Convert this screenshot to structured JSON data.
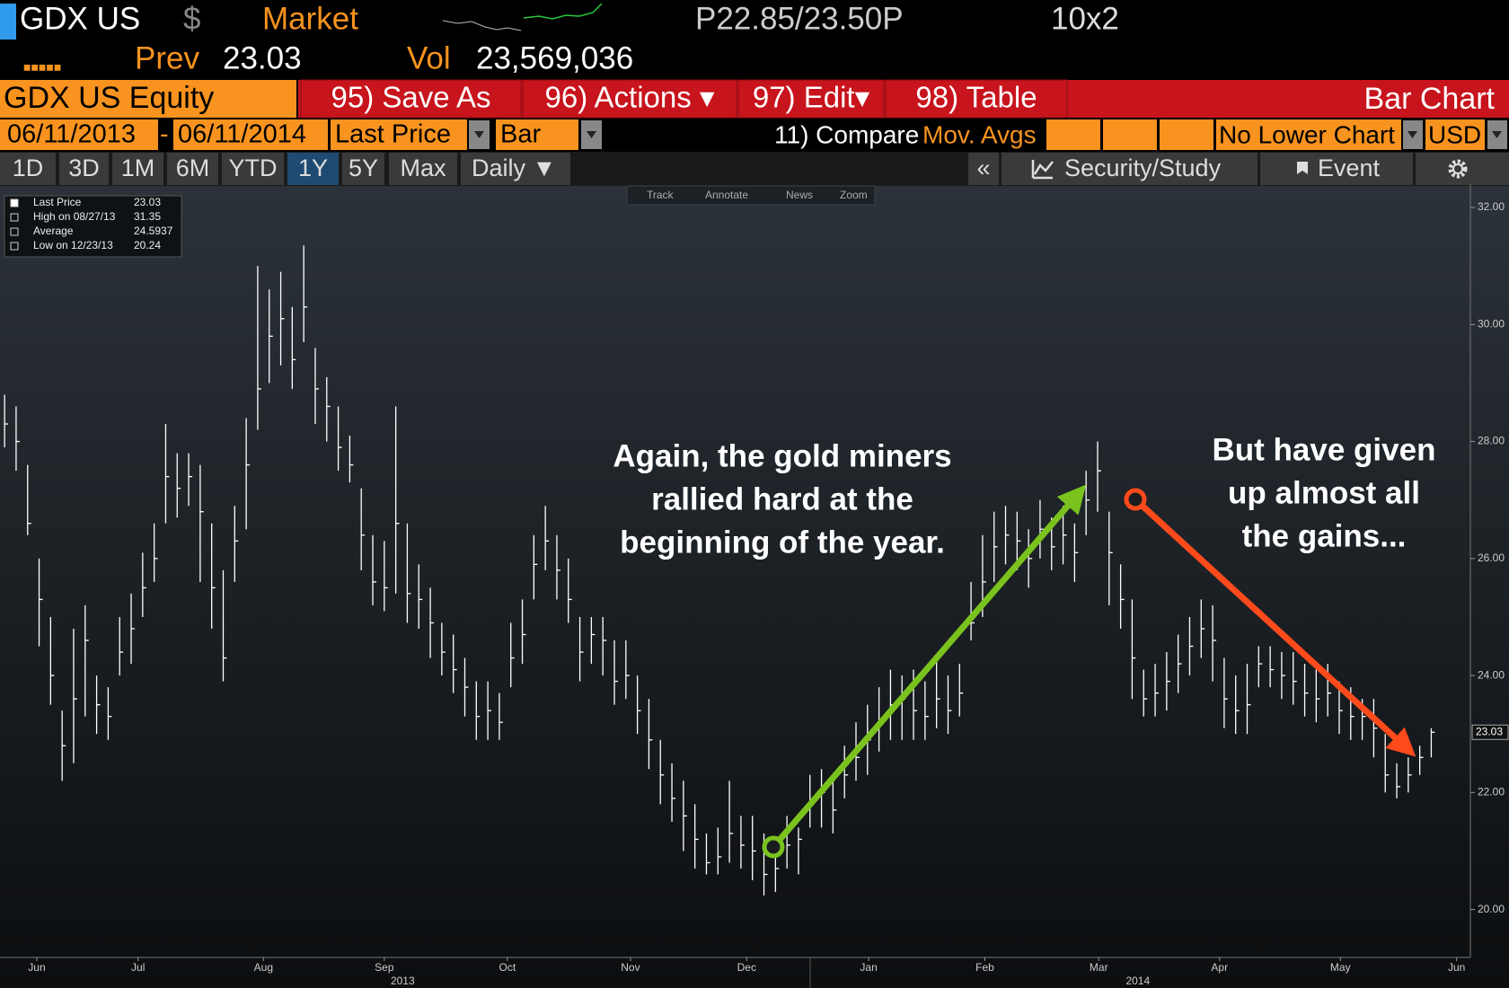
{
  "header": {
    "ticker": "GDX US",
    "currency": "$",
    "source": "Market",
    "quote": "P22.85/23.50P",
    "size": "10x2",
    "prev_label": "Prev",
    "prev": "23.03",
    "vol_label": "Vol",
    "vol": "23,569,036"
  },
  "menu": {
    "security": "GDX US Equity",
    "buttons": [
      "95) Save As",
      "96) Actions ▾",
      "97) Edit▾",
      "98) Table"
    ],
    "title": "Bar Chart"
  },
  "settings": {
    "start": "06/11/2013",
    "separator": "-",
    "end": "06/11/2014",
    "field": "Last Price",
    "style": "Bar",
    "compare": "11) Compare",
    "mov_avgs": "Mov. Avgs",
    "lower": "No Lower Chart",
    "currency": "USD"
  },
  "periods": [
    "1D",
    "3D",
    "1M",
    "6M",
    "YTD",
    "1Y",
    "5Y",
    "Max"
  ],
  "frequency": "Daily ▼",
  "tools": {
    "collapse": "«",
    "study": "Security/Study",
    "event": "Event"
  },
  "chart_tools": [
    "Track",
    "Annotate",
    "News",
    "Zoom"
  ],
  "chart_data": {
    "type": "ohlc",
    "color": "#ffffff",
    "legend": [
      {
        "label": "Last Price",
        "value": "23.03"
      },
      {
        "label": "High on 08/27/13",
        "value": "31.35"
      },
      {
        "label": "Average",
        "value": "24.5937"
      },
      {
        "label": "Low on 12/23/13",
        "value": "20.24"
      }
    ],
    "annotations": [
      {
        "lines": [
          "Again, the gold miners",
          "rallied hard at the",
          "beginning of the year."
        ],
        "color": "#7ac31e"
      },
      {
        "lines": [
          "But have given",
          "up almost all",
          "the gains..."
        ],
        "color": "#ff4a1c"
      }
    ],
    "last_price_marker": {
      "value": 23.03,
      "label": "23.03"
    },
    "xlim": [
      -0.4,
      127.4
    ],
    "ylim": [
      19.18,
      32.4
    ],
    "yticks": [
      {
        "value": 20,
        "label": "20.00"
      },
      {
        "value": 22,
        "label": "22.00"
      },
      {
        "value": 24,
        "label": "24.00"
      },
      {
        "value": 26,
        "label": "26.00"
      },
      {
        "value": 28,
        "label": "28.00"
      },
      {
        "value": 30,
        "label": "30.00"
      },
      {
        "value": 32,
        "label": "32.00"
      }
    ],
    "xticks": [
      {
        "value": 2.8,
        "label": "Jun"
      },
      {
        "value": 11.6,
        "label": "Jul"
      },
      {
        "value": 22.5,
        "label": "Aug"
      },
      {
        "value": 33.0,
        "label": "Sep"
      },
      {
        "value": 43.7,
        "label": "Oct"
      },
      {
        "value": 54.4,
        "label": "Nov"
      },
      {
        "value": 64.5,
        "label": "Dec"
      },
      {
        "value": 75.1,
        "label": "Jan"
      },
      {
        "value": 85.2,
        "label": "Feb"
      },
      {
        "value": 95.1,
        "label": "Mar"
      },
      {
        "value": 105.6,
        "label": "Apr"
      },
      {
        "value": 116.1,
        "label": "May"
      },
      {
        "value": 126.2,
        "label": "Jun"
      }
    ],
    "year_ticks": [
      {
        "value": 34.6,
        "label": "2013"
      },
      {
        "value": 98.5,
        "label": "2014"
      }
    ],
    "high": [
      28.8,
      28.6,
      27.6,
      26.0,
      25.0,
      23.4,
      24.8,
      25.2,
      24.0,
      23.8,
      25.0,
      25.4,
      26.1,
      26.6,
      28.3,
      27.8,
      27.8,
      27.6,
      26.6,
      25.8,
      26.9,
      28.4,
      31.0,
      30.6,
      30.9,
      30.3,
      31.35,
      29.6,
      29.1,
      28.6,
      28.1,
      27.2,
      26.4,
      26.3,
      28.6,
      26.6,
      25.9,
      25.5,
      24.9,
      24.7,
      24.3,
      23.9,
      23.9,
      23.7,
      24.9,
      25.3,
      26.4,
      26.9,
      26.4,
      26.0,
      25.0,
      25.0,
      25.0,
      24.6,
      24.6,
      24.0,
      23.6,
      22.9,
      22.5,
      22.2,
      21.8,
      21.3,
      21.4,
      22.2,
      21.6,
      21.6,
      21.3,
      21.2,
      21.6,
      21.4,
      22.3,
      22.4,
      22.2,
      22.8,
      23.2,
      23.5,
      23.8,
      24.1,
      24.0,
      24.1,
      23.9,
      24.3,
      24.0,
      24.2,
      25.6,
      26.4,
      26.8,
      26.9,
      26.8,
      26.5,
      27.0,
      26.7,
      26.9,
      26.6,
      27.5,
      28.0,
      26.8,
      25.9,
      25.3,
      24.1,
      24.2,
      24.4,
      24.7,
      25.0,
      25.3,
      25.2,
      24.3,
      24.0,
      24.2,
      24.5,
      24.5,
      24.4,
      24.4,
      24.2,
      24.1,
      24.2,
      23.9,
      23.8,
      23.6,
      23.6,
      23.0,
      22.5,
      22.6,
      22.8,
      23.1
    ],
    "low": [
      27.9,
      27.5,
      26.4,
      24.5,
      23.5,
      22.2,
      22.5,
      23.3,
      23.0,
      22.9,
      24.0,
      24.2,
      25.0,
      25.6,
      26.6,
      26.7,
      26.9,
      25.6,
      24.8,
      23.9,
      25.6,
      26.5,
      28.2,
      29.0,
      29.3,
      28.9,
      29.7,
      28.3,
      28.0,
      27.5,
      27.3,
      25.8,
      25.2,
      25.1,
      25.4,
      24.9,
      24.8,
      24.3,
      24.0,
      23.7,
      23.3,
      22.9,
      22.9,
      22.9,
      23.8,
      24.2,
      25.3,
      25.8,
      25.3,
      24.9,
      23.9,
      24.2,
      24.0,
      23.5,
      23.6,
      23.0,
      22.4,
      21.8,
      21.5,
      21.0,
      20.7,
      20.6,
      20.6,
      20.8,
      20.7,
      20.5,
      20.24,
      20.3,
      20.7,
      20.6,
      21.4,
      21.4,
      21.3,
      21.9,
      22.2,
      22.3,
      22.7,
      22.9,
      22.9,
      22.9,
      22.9,
      23.1,
      23.0,
      23.3,
      24.6,
      25.0,
      25.6,
      25.9,
      25.8,
      25.5,
      26.0,
      25.8,
      25.9,
      25.6,
      26.4,
      26.8,
      25.2,
      24.8,
      23.6,
      23.3,
      23.3,
      23.4,
      23.7,
      24.0,
      24.3,
      23.9,
      23.1,
      23.0,
      23.0,
      23.8,
      23.8,
      23.6,
      23.5,
      23.3,
      23.2,
      23.3,
      23.0,
      22.9,
      22.9,
      22.6,
      22.0,
      21.9,
      22.0,
      22.3,
      22.6
    ],
    "close": [
      28.3,
      28.0,
      26.6,
      25.3,
      24.0,
      22.8,
      23.6,
      24.6,
      23.5,
      23.3,
      24.4,
      24.8,
      25.5,
      26.0,
      27.4,
      27.2,
      27.4,
      26.8,
      25.5,
      24.3,
      26.3,
      27.6,
      28.9,
      29.8,
      30.1,
      29.4,
      30.3,
      28.9,
      28.6,
      27.9,
      27.6,
      26.4,
      25.6,
      25.5,
      26.6,
      25.4,
      25.3,
      24.9,
      24.4,
      24.1,
      23.8,
      23.3,
      23.4,
      23.2,
      24.3,
      24.7,
      25.9,
      26.3,
      25.8,
      25.3,
      24.4,
      24.7,
      24.6,
      23.9,
      24.0,
      23.4,
      22.9,
      22.3,
      21.9,
      21.6,
      21.2,
      20.8,
      20.9,
      21.3,
      21.1,
      21.0,
      20.6,
      20.7,
      21.1,
      21.2,
      21.8,
      22.0,
      21.7,
      22.3,
      22.6,
      22.9,
      23.2,
      23.5,
      23.6,
      23.4,
      23.3,
      23.6,
      23.4,
      23.7,
      24.9,
      25.6,
      26.2,
      26.4,
      26.3,
      26.0,
      26.5,
      26.2,
      26.4,
      26.1,
      27.0,
      27.5,
      26.1,
      25.3,
      24.3,
      23.6,
      23.7,
      23.9,
      24.2,
      24.5,
      24.8,
      24.6,
      23.6,
      23.4,
      23.5,
      24.2,
      24.1,
      24.0,
      23.9,
      23.7,
      23.6,
      23.7,
      23.4,
      23.3,
      23.3,
      23.1,
      22.3,
      22.1,
      22.3,
      22.6,
      23.03
    ]
  }
}
